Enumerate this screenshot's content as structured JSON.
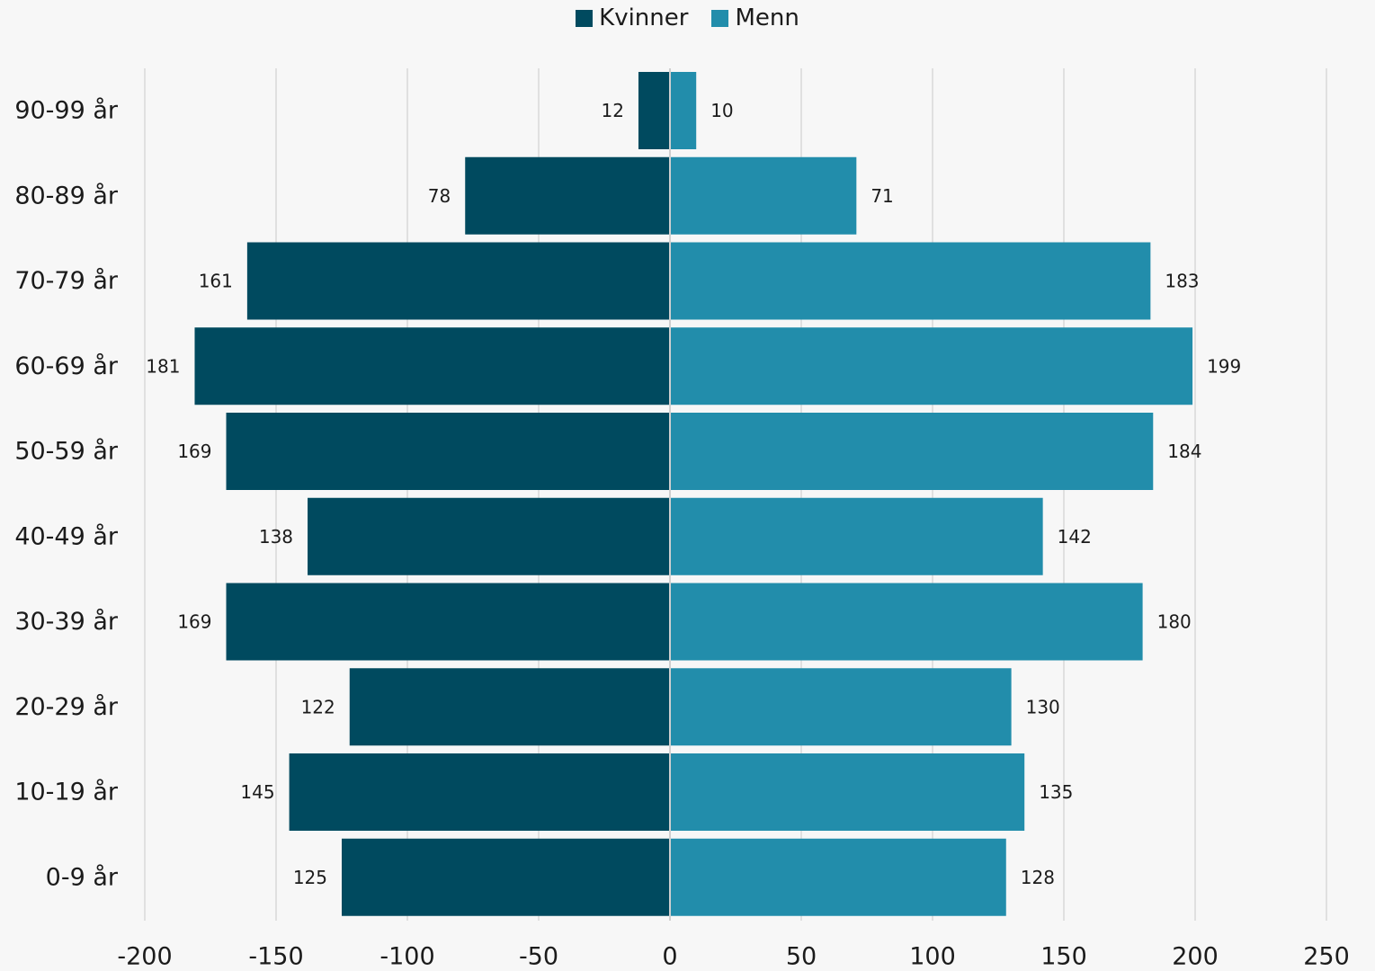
{
  "legend": [
    {
      "label": "Kvinner",
      "color": "#004a5f"
    },
    {
      "label": "Menn",
      "color": "#228dab"
    }
  ],
  "chart_data": {
    "type": "bar",
    "orientation": "horizontal",
    "subtype": "population-pyramid",
    "categories": [
      "90-99 år",
      "80-89 år",
      "70-79 år",
      "60-69 år",
      "50-59 år",
      "40-49 år",
      "30-39 år",
      "20-29 år",
      "10-19 år",
      "0-9 år"
    ],
    "series": [
      {
        "name": "Kvinner",
        "values": [
          -12,
          -78,
          -161,
          -181,
          -169,
          -138,
          -169,
          -122,
          -145,
          -125
        ],
        "labels": [
          "12",
          "78",
          "161",
          "181",
          "169",
          "138",
          "169",
          "122",
          "145",
          "125"
        ],
        "color": "#004a5f"
      },
      {
        "name": "Menn",
        "values": [
          10,
          71,
          183,
          199,
          184,
          142,
          180,
          130,
          135,
          128
        ],
        "labels": [
          "10",
          "71",
          "183",
          "199",
          "184",
          "142",
          "180",
          "130",
          "135",
          "128"
        ],
        "color": "#228dab"
      }
    ],
    "xlim": [
      -200,
      250
    ],
    "xticks": [
      -200,
      -150,
      -100,
      -50,
      0,
      50,
      100,
      150,
      200,
      250
    ],
    "grid": "vertical",
    "legend_position": "top-center",
    "title": "",
    "xlabel": "",
    "ylabel": ""
  }
}
